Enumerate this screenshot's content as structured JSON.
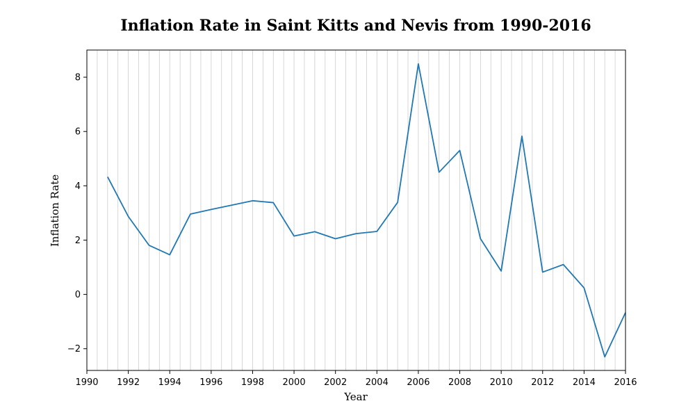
{
  "chart_data": {
    "type": "line",
    "title": "Inflation Rate in Saint Kitts and Nevis from 1990-2016",
    "xlabel": "Year",
    "ylabel": "Inflation Rate",
    "xlim": [
      1990,
      2016
    ],
    "ylim": [
      -2.8,
      9.0
    ],
    "grid": "vertical",
    "x_ticks": [
      1990,
      1992,
      1994,
      1996,
      1998,
      2000,
      2002,
      2004,
      2006,
      2008,
      2010,
      2012,
      2014,
      2016
    ],
    "x_tick_labels": [
      "1990",
      "1992",
      "1994",
      "1996",
      "1998",
      "2000",
      "2002",
      "2004",
      "2006",
      "2008",
      "2010",
      "2012",
      "2014",
      "2016"
    ],
    "y_ticks": [
      -2,
      0,
      2,
      4,
      6,
      8
    ],
    "y_tick_labels": [
      "−2",
      "0",
      "2",
      "4",
      "6",
      "8"
    ],
    "series": [
      {
        "color": "#1f77b4",
        "x": [
          1991,
          1992,
          1993,
          1994,
          1995,
          1996,
          1997,
          1998,
          1999,
          2000,
          2001,
          2002,
          2003,
          2004,
          2005,
          2006,
          2007,
          2008,
          2009,
          2010,
          2011,
          2012,
          2013,
          2014,
          2015,
          2016
        ],
        "y": [
          4.33,
          2.87,
          1.81,
          1.46,
          2.96,
          3.13,
          3.29,
          3.45,
          3.38,
          2.15,
          2.31,
          2.05,
          2.24,
          2.32,
          3.39,
          8.49,
          4.5,
          5.3,
          2.05,
          0.86,
          5.83,
          0.82,
          1.1,
          0.24,
          -2.3,
          -0.67
        ]
      }
    ]
  }
}
